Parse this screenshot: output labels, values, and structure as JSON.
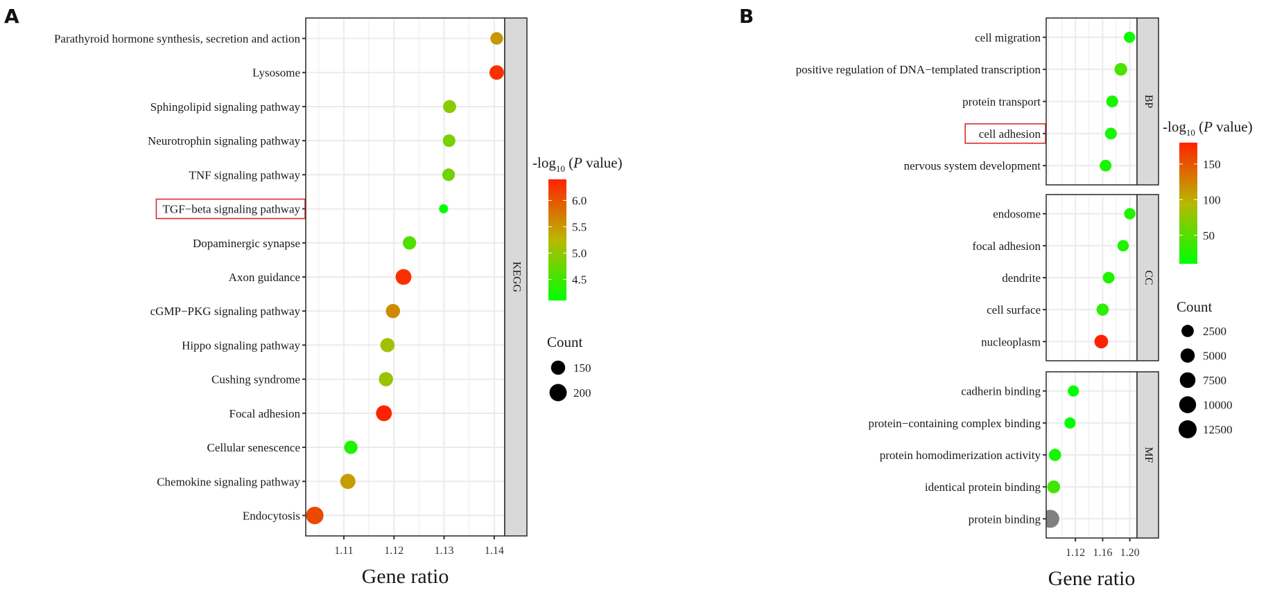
{
  "figure": {
    "panels": [
      "A",
      "B"
    ]
  },
  "chart_data": [
    {
      "panel": "A",
      "type": "scatter",
      "subtype": "dot-plot",
      "xlabel": "Gene ratio",
      "ylabel": "",
      "xlim": [
        1.1024,
        1.1421
      ],
      "xticks": [
        1.11,
        1.12,
        1.13,
        1.14
      ],
      "xtick_labels": [
        "1.11",
        "1.12",
        "1.13",
        "1.14"
      ],
      "grid": true,
      "facets": [
        {
          "strip": "KEGG",
          "categories": [
            "Parathyroid hormone synthesis, secretion and action",
            "Lysosome",
            "Sphingolipid signaling pathway",
            "Neurotrophin signaling pathway",
            "TNF signaling pathway",
            "TGF−beta signaling pathway",
            "Dopaminergic synapse",
            "Axon guidance",
            "cGMP−PKG signaling pathway",
            "Hippo signaling pathway",
            "Cushing syndrome",
            "Focal adhesion",
            "Cellular senescence",
            "Chemokine signaling pathway",
            "Endocytosis"
          ],
          "gene_ratio": [
            1.1405,
            1.1405,
            1.1311,
            1.131,
            1.1309,
            1.1299,
            1.1231,
            1.1219,
            1.1198,
            1.1187,
            1.1184,
            1.118,
            1.1114,
            1.1108,
            1.1042
          ],
          "neg_log10_p": [
            5.5,
            6.3,
            4.95,
            4.85,
            4.8,
            4.1,
            4.6,
            6.3,
            5.6,
            5.1,
            5.05,
            6.4,
            4.3,
            5.45,
            6.1
          ],
          "count": [
            130,
            155,
            135,
            130,
            130,
            100,
            140,
            175,
            150,
            150,
            150,
            175,
            140,
            165,
            205
          ]
        }
      ],
      "highlighted": [
        "TGF−beta signaling pathway"
      ],
      "color_legend": {
        "title_prefix": "-log",
        "title_sub": "10",
        "title_paren_open": " (",
        "title_italic": "P",
        "title_suffix": " value)",
        "range": [
          4.1,
          6.4
        ],
        "ticks": [
          4.5,
          5.0,
          5.5,
          6.0
        ],
        "tick_labels": [
          "4.5",
          "5.0",
          "5.5",
          "6.0"
        ],
        "low_color": "#00ff00",
        "mid_color": "#b8b800",
        "high_color": "#ff2200"
      },
      "size_legend": {
        "title": "Count",
        "values": [
          150,
          200
        ],
        "labels": [
          "150",
          "200"
        ]
      }
    },
    {
      "panel": "B",
      "type": "scatter",
      "subtype": "dot-plot",
      "xlabel": "Gene ratio",
      "ylabel": "",
      "xlim": [
        1.077,
        1.2106
      ],
      "xticks": [
        1.12,
        1.16,
        1.2
      ],
      "xtick_labels": [
        "1.12",
        "1.16",
        "1.20"
      ],
      "grid": true,
      "facets": [
        {
          "strip": "BP",
          "categories": [
            "cell migration",
            "positive regulation of DNA−templated transcription",
            "protein transport",
            "cell adhesion",
            "nervous system development"
          ],
          "gene_ratio": [
            1.1995,
            1.1868,
            1.1741,
            1.1722,
            1.1644
          ],
          "neg_log10_p": [
            15,
            45,
            22,
            20,
            22
          ],
          "count": [
            1500,
            3000,
            2100,
            2000,
            2000
          ]
        },
        {
          "strip": "CC",
          "categories": [
            "endosome",
            "focal adhesion",
            "dendrite",
            "cell surface",
            "nucleoplasm"
          ],
          "gene_ratio": [
            1.2,
            1.1902,
            1.1688,
            1.16,
            1.158
          ],
          "neg_log10_p": [
            25,
            25,
            25,
            30,
            180
          ],
          "count": [
            1600,
            1700,
            1900,
            2400,
            4200
          ]
        },
        {
          "strip": "MF",
          "categories": [
            "cadherin binding",
            "protein−containing complex binding",
            "protein homodimerization activity",
            "identical protein binding",
            "protein binding"
          ],
          "gene_ratio": [
            1.117,
            1.112,
            1.09,
            1.088,
            1.083
          ],
          "neg_log10_p": [
            10,
            12,
            20,
            40,
            null
          ],
          "count": [
            1500,
            1500,
            2500,
            3200,
            12500
          ],
          "note": "protein binding shown in grey (p-value outside color scale)"
        }
      ],
      "highlighted": [
        "cell adhesion"
      ],
      "color_legend": {
        "title_prefix": "-log",
        "title_sub": "10",
        "title_paren_open": " (",
        "title_italic": "P",
        "title_suffix": " value)",
        "range": [
          10,
          180
        ],
        "ticks": [
          50,
          100,
          150
        ],
        "tick_labels": [
          "50",
          "100",
          "150"
        ],
        "low_color": "#00ff00",
        "mid_color": "#b8b800",
        "high_color": "#ff2200",
        "na_color": "#808080"
      },
      "size_legend": {
        "title": "Count",
        "values": [
          2500,
          5000,
          7500,
          10000,
          12500
        ],
        "labels": [
          "2500",
          "5000",
          "7500",
          "10000",
          "12500"
        ]
      }
    }
  ]
}
